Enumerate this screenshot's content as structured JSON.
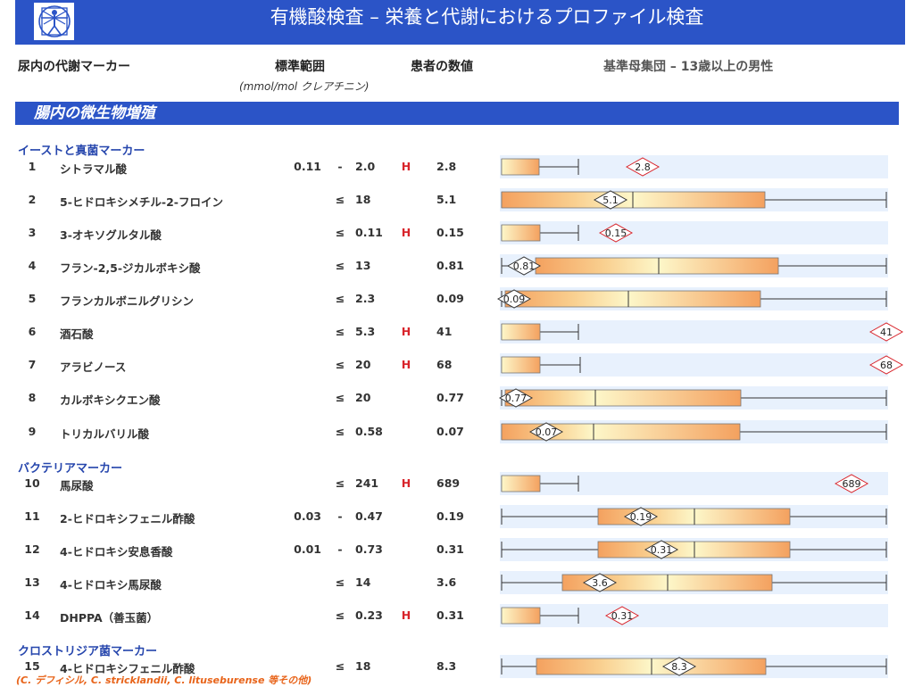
{
  "header": {
    "title": "有機酸検査 – 栄養と代謝におけるプロファイル検査",
    "logo_icon": "vitruvian-man-icon"
  },
  "columns": {
    "marker": "尿内の代謝マーカー",
    "range": "標準範囲",
    "range_unit": "(mmol/mol クレアチニン)",
    "value": "患者の数値",
    "population": "基準母集団 – 13歳以上の男性"
  },
  "section": {
    "title": "腸内の微生物増殖"
  },
  "groups": [
    {
      "label": "イーストと真菌マーカー"
    },
    {
      "label": "バクテリアマーカー"
    },
    {
      "label": "クロストリジア菌マーカー"
    }
  ],
  "rows": [
    {
      "num": "1",
      "name": "シトラマル酸",
      "low": "0.11",
      "op": "-",
      "high": "2.0",
      "flag": "H",
      "value": "2.8",
      "diamond": "2.8",
      "status": "high"
    },
    {
      "num": "2",
      "name": "5-ヒドロキシメチル-2-フロイン",
      "low": "",
      "op": "≤",
      "high": "18",
      "flag": "",
      "value": "5.1",
      "diamond": "5.1",
      "status": "normal"
    },
    {
      "num": "3",
      "name": "3-オキソグルタル酸",
      "low": "",
      "op": "≤",
      "high": "0.11",
      "flag": "H",
      "value": "0.15",
      "diamond": "0.15",
      "status": "high"
    },
    {
      "num": "4",
      "name": "フラン-2,5-ジカルボキシ酸",
      "low": "",
      "op": "≤",
      "high": "13",
      "flag": "",
      "value": "0.81",
      "diamond": "0.81",
      "status": "normal"
    },
    {
      "num": "5",
      "name": "フランカルボニルグリシン",
      "low": "",
      "op": "≤",
      "high": "2.3",
      "flag": "",
      "value": "0.09",
      "diamond": "0.09",
      "status": "normal"
    },
    {
      "num": "6",
      "name": "酒石酸",
      "low": "",
      "op": "≤",
      "high": "5.3",
      "flag": "H",
      "value": "41",
      "diamond": "41",
      "status": "high"
    },
    {
      "num": "7",
      "name": "アラビノース",
      "low": "",
      "op": "≤",
      "high": "20",
      "flag": "H",
      "value": "68",
      "diamond": "68",
      "status": "high"
    },
    {
      "num": "8",
      "name": "カルボキシクエン酸",
      "low": "",
      "op": "≤",
      "high": "20",
      "flag": "",
      "value": "0.77",
      "diamond": "0.77",
      "status": "normal"
    },
    {
      "num": "9",
      "name": "トリカルバリル酸",
      "low": "",
      "op": "≤",
      "high": "0.58",
      "flag": "",
      "value": "0.07",
      "diamond": "0.07",
      "status": "normal"
    },
    {
      "num": "10",
      "name": "馬尿酸",
      "low": "",
      "op": "≤",
      "high": "241",
      "flag": "H",
      "value": "689",
      "diamond": "689",
      "status": "high"
    },
    {
      "num": "11",
      "name": "2-ヒドロキシフェニル酢酸",
      "low": "0.03",
      "op": "-",
      "high": "0.47",
      "flag": "",
      "value": "0.19",
      "diamond": "0.19",
      "status": "normal"
    },
    {
      "num": "12",
      "name": "4-ヒドロキシ安息香酸",
      "low": "0.01",
      "op": "-",
      "high": "0.73",
      "flag": "",
      "value": "0.31",
      "diamond": "0.31",
      "status": "normal"
    },
    {
      "num": "13",
      "name": "4-ヒドロキシ馬尿酸",
      "low": "",
      "op": "≤",
      "high": "14",
      "flag": "",
      "value": "3.6",
      "diamond": "3.6",
      "status": "normal"
    },
    {
      "num": "14",
      "name": "DHPPA（善玉菌）",
      "low": "",
      "op": "≤",
      "high": "0.23",
      "flag": "H",
      "value": "0.31",
      "diamond": "0.31",
      "status": "high"
    },
    {
      "num": "15",
      "name": "4-ヒドロキシフェニル酢酸",
      "low": "",
      "op": "≤",
      "high": "18",
      "flag": "",
      "value": "8.3",
      "diamond": "8.3",
      "status": "normal"
    }
  ],
  "footnote": "(C. デフィシル, C. stricklandii, C. lituseburense 等その他)",
  "colors": {
    "banner": "#2b54c7",
    "group_label": "#2646ad",
    "flag_high": "#d8242b",
    "band": "#e8f1fd",
    "box_dark": "#f4a15f",
    "box_light": "#fdf7c9",
    "diamond_high_stroke": "#d8242b",
    "footnote": "#e8641a"
  }
}
